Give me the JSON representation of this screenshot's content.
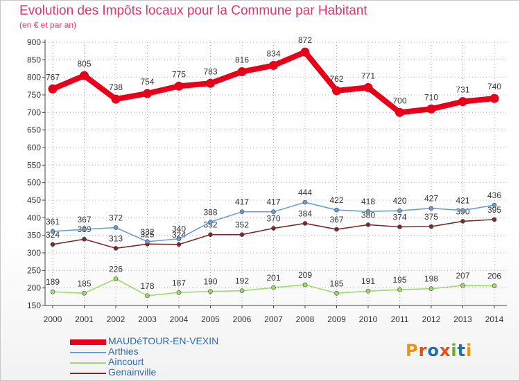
{
  "title": "Evolution des Impôts locaux pour la Commune par Habitant",
  "subtitle": "(en € et par an)",
  "logo_text": "Proxiti",
  "colors": {
    "title": "#e8336a",
    "axis": "#444444",
    "grid": "#b0b0b0",
    "legend_text": "#2f6cb5"
  },
  "chart_data": {
    "type": "line",
    "title": "Evolution des Impôts locaux pour la Commune par Habitant",
    "subtitle": "(en € et par an)",
    "xlabel": "",
    "ylabel": "",
    "x": [
      "2000",
      "2001",
      "2002",
      "2003",
      "2004",
      "2005",
      "2006",
      "2007",
      "2008",
      "2009",
      "2010",
      "2011",
      "2012",
      "2013",
      "2014"
    ],
    "ylim": [
      150,
      900
    ],
    "yticks": [
      150,
      200,
      250,
      300,
      350,
      400,
      450,
      500,
      550,
      600,
      650,
      700,
      750,
      800,
      850,
      900
    ],
    "grid": true,
    "legend_position": "bottom-left",
    "series": [
      {
        "name": "MAUDéTOUR-EN-VEXIN",
        "color": "#e8001a",
        "values": [
          767,
          805,
          738,
          754,
          775,
          783,
          816,
          834,
          872,
          762,
          771,
          700,
          710,
          731,
          740
        ]
      },
      {
        "name": "Arthies",
        "color": "#6a9fd4",
        "values": [
          361,
          367,
          372,
          332,
          340,
          388,
          417,
          417,
          444,
          422,
          418,
          420,
          427,
          421,
          436
        ]
      },
      {
        "name": "Aincourt",
        "color": "#9ddc6a",
        "values": [
          189,
          185,
          226,
          178,
          187,
          190,
          192,
          201,
          209,
          185,
          191,
          195,
          198,
          207,
          206
        ]
      },
      {
        "name": "Genainville",
        "color": "#7b2a2a",
        "values": [
          324,
          339,
          313,
          325,
          324,
          352,
          352,
          370,
          384,
          367,
          380,
          374,
          375,
          390,
          395
        ]
      }
    ]
  }
}
